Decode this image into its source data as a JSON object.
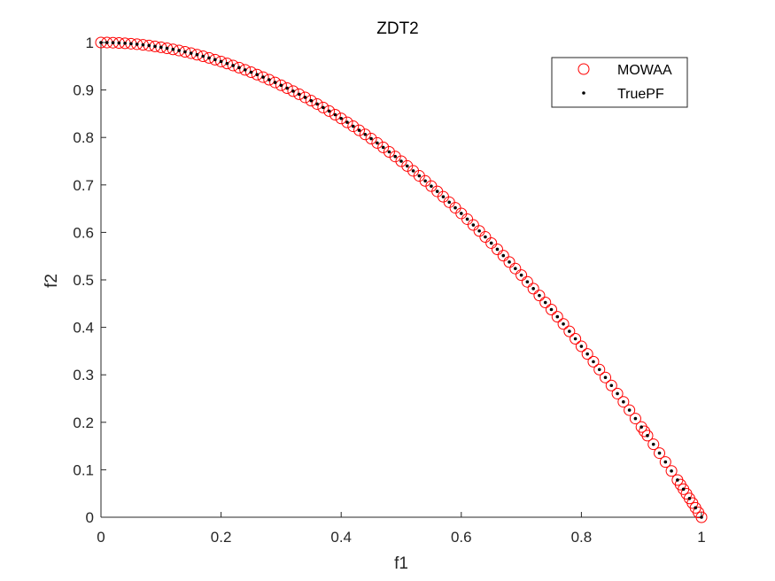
{
  "chart_data": {
    "type": "scatter",
    "title": "ZDT2",
    "xlabel": "f1",
    "ylabel": "f2",
    "xlim": [
      0,
      1
    ],
    "ylim": [
      0,
      1
    ],
    "xticks": [
      "0",
      "0.2",
      "0.4",
      "0.6",
      "0.8",
      "1"
    ],
    "yticks": [
      "0",
      "0.1",
      "0.2",
      "0.3",
      "0.4",
      "0.5",
      "0.6",
      "0.7",
      "0.8",
      "0.9",
      "1"
    ],
    "grid": false,
    "legend_position": "top-right",
    "series": [
      {
        "name": "MOWAA",
        "marker": "open-circle",
        "color": "#ff0000",
        "x": [
          0,
          0.01,
          0.02,
          0.03,
          0.04,
          0.05,
          0.06,
          0.07,
          0.08,
          0.09,
          0.1,
          0.11,
          0.12,
          0.13,
          0.14,
          0.15,
          0.16,
          0.17,
          0.18,
          0.19,
          0.2,
          0.21,
          0.22,
          0.23,
          0.24,
          0.25,
          0.26,
          0.27,
          0.28,
          0.29,
          0.3,
          0.31,
          0.32,
          0.33,
          0.34,
          0.35,
          0.36,
          0.37,
          0.38,
          0.39,
          0.4,
          0.41,
          0.42,
          0.43,
          0.44,
          0.45,
          0.46,
          0.47,
          0.48,
          0.49,
          0.5,
          0.51,
          0.52,
          0.53,
          0.54,
          0.55,
          0.56,
          0.57,
          0.58,
          0.59,
          0.6,
          0.61,
          0.62,
          0.63,
          0.64,
          0.65,
          0.66,
          0.67,
          0.68,
          0.69,
          0.7,
          0.71,
          0.72,
          0.73,
          0.74,
          0.75,
          0.76,
          0.77,
          0.78,
          0.79,
          0.8,
          0.81,
          0.82,
          0.83,
          0.84,
          0.85,
          0.86,
          0.87,
          0.88,
          0.89,
          0.9,
          0.905,
          0.91,
          0.92,
          0.93,
          0.94,
          0.95,
          0.96,
          0.965,
          0.97,
          0.975,
          0.98,
          0.985,
          0.99,
          0.995,
          1
        ],
        "y": [
          1,
          0.9999,
          0.9996,
          0.9991,
          0.9984,
          0.9975,
          0.9964,
          0.9951,
          0.9936,
          0.9919,
          0.99,
          0.9879,
          0.9856,
          0.9831,
          0.9804,
          0.9775,
          0.9744,
          0.9711,
          0.9676,
          0.9639,
          0.96,
          0.9559,
          0.9516,
          0.9471,
          0.9424,
          0.9375,
          0.9324,
          0.9271,
          0.9216,
          0.9159,
          0.91,
          0.9039,
          0.8976,
          0.8911,
          0.8844,
          0.8775,
          0.8704,
          0.8631,
          0.8556,
          0.8479,
          0.84,
          0.8319,
          0.8236,
          0.8151,
          0.8064,
          0.7975,
          0.7884,
          0.7791,
          0.7696,
          0.7599,
          0.75,
          0.7399,
          0.7296,
          0.7191,
          0.7084,
          0.6975,
          0.6864,
          0.6751,
          0.6636,
          0.6519,
          0.64,
          0.6279,
          0.6156,
          0.6031,
          0.5904,
          0.5775,
          0.5644,
          0.5511,
          0.5376,
          0.5239,
          0.51,
          0.4959,
          0.4816,
          0.4671,
          0.4524,
          0.4375,
          0.4224,
          0.4071,
          0.3916,
          0.3759,
          0.36,
          0.3439,
          0.3276,
          0.3111,
          0.2944,
          0.2775,
          0.2604,
          0.2431,
          0.2256,
          0.2079,
          0.19,
          0.181,
          0.1719,
          0.1536,
          0.1351,
          0.1164,
          0.0975,
          0.0784,
          0.0688,
          0.0591,
          0.0494,
          0.0396,
          0.0298,
          0.0199,
          0.01,
          0
        ]
      },
      {
        "name": "TruePF",
        "marker": "dot",
        "color": "#000000",
        "x": [
          0,
          0.01,
          0.02,
          0.03,
          0.04,
          0.05,
          0.06,
          0.07,
          0.08,
          0.09,
          0.1,
          0.11,
          0.12,
          0.13,
          0.14,
          0.15,
          0.16,
          0.17,
          0.18,
          0.19,
          0.2,
          0.21,
          0.22,
          0.23,
          0.24,
          0.25,
          0.26,
          0.27,
          0.28,
          0.29,
          0.3,
          0.31,
          0.32,
          0.33,
          0.34,
          0.35,
          0.36,
          0.37,
          0.38,
          0.39,
          0.4,
          0.41,
          0.42,
          0.43,
          0.44,
          0.45,
          0.46,
          0.47,
          0.48,
          0.49,
          0.5,
          0.51,
          0.52,
          0.53,
          0.54,
          0.55,
          0.56,
          0.57,
          0.58,
          0.59,
          0.6,
          0.61,
          0.62,
          0.63,
          0.64,
          0.65,
          0.66,
          0.67,
          0.68,
          0.69,
          0.7,
          0.71,
          0.72,
          0.73,
          0.74,
          0.75,
          0.76,
          0.77,
          0.78,
          0.79,
          0.8,
          0.81,
          0.82,
          0.83,
          0.84,
          0.85,
          0.86,
          0.87,
          0.88,
          0.89,
          0.9,
          0.91,
          0.92,
          0.93,
          0.94,
          0.95,
          0.96,
          0.97,
          0.98,
          0.99,
          1
        ],
        "y": [
          1,
          0.9999,
          0.9996,
          0.9991,
          0.9984,
          0.9975,
          0.9964,
          0.9951,
          0.9936,
          0.9919,
          0.99,
          0.9879,
          0.9856,
          0.9831,
          0.9804,
          0.9775,
          0.9744,
          0.9711,
          0.9676,
          0.9639,
          0.96,
          0.9559,
          0.9516,
          0.9471,
          0.9424,
          0.9375,
          0.9324,
          0.9271,
          0.9216,
          0.9159,
          0.91,
          0.9039,
          0.8976,
          0.8911,
          0.8844,
          0.8775,
          0.8704,
          0.8631,
          0.8556,
          0.8479,
          0.84,
          0.8319,
          0.8236,
          0.8151,
          0.8064,
          0.7975,
          0.7884,
          0.7791,
          0.7696,
          0.7599,
          0.75,
          0.7399,
          0.7296,
          0.7191,
          0.7084,
          0.6975,
          0.6864,
          0.6751,
          0.6636,
          0.6519,
          0.64,
          0.6279,
          0.6156,
          0.6031,
          0.5904,
          0.5775,
          0.5644,
          0.5511,
          0.5376,
          0.5239,
          0.51,
          0.4959,
          0.4816,
          0.4671,
          0.4524,
          0.4375,
          0.4224,
          0.4071,
          0.3916,
          0.3759,
          0.36,
          0.3439,
          0.3276,
          0.3111,
          0.2944,
          0.2775,
          0.2604,
          0.2431,
          0.2256,
          0.2079,
          0.19,
          0.1719,
          0.1536,
          0.1351,
          0.1164,
          0.0975,
          0.0784,
          0.0591,
          0.0396,
          0.0199,
          0
        ]
      }
    ]
  }
}
